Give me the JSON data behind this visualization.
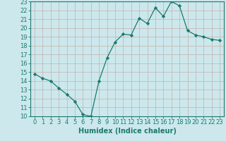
{
  "x": [
    0,
    1,
    2,
    3,
    4,
    5,
    6,
    7,
    8,
    9,
    10,
    11,
    12,
    13,
    14,
    15,
    16,
    17,
    18,
    19,
    20,
    21,
    22,
    23
  ],
  "y": [
    14.8,
    14.3,
    14.0,
    13.2,
    12.5,
    11.7,
    10.2,
    10.0,
    14.0,
    16.6,
    18.4,
    19.3,
    19.2,
    21.1,
    20.5,
    22.3,
    21.3,
    23.0,
    22.5,
    19.7,
    19.2,
    19.0,
    18.7,
    18.6
  ],
  "line_color": "#1a7a6e",
  "marker_color": "#1a7a6e",
  "bg_color": "#cce8ec",
  "grid_color": "#c8b8b8",
  "xlabel": "Humidex (Indice chaleur)",
  "xlim": [
    -0.5,
    23.5
  ],
  "ylim": [
    10,
    23
  ],
  "yticks": [
    10,
    11,
    12,
    13,
    14,
    15,
    16,
    17,
    18,
    19,
    20,
    21,
    22,
    23
  ],
  "xticks": [
    0,
    1,
    2,
    3,
    4,
    5,
    6,
    7,
    8,
    9,
    10,
    11,
    12,
    13,
    14,
    15,
    16,
    17,
    18,
    19,
    20,
    21,
    22,
    23
  ],
  "label_fontsize": 7.0,
  "tick_fontsize": 6.0
}
